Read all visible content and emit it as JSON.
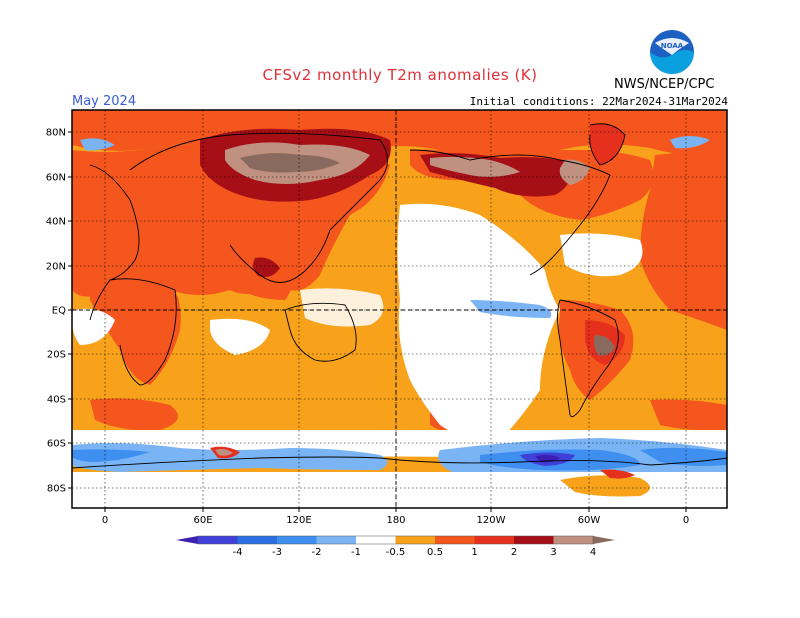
{
  "header": {
    "title": "CFSv2 monthly T2m anomalies (K)",
    "period": "May 2024",
    "initial_conditions": "Initial conditions: 22Mar2024-31Mar2024",
    "agency": "NWS/NCEP/CPC",
    "logo_text": "NOAA"
  },
  "map": {
    "projection": "equirectangular, Pacific-centered",
    "lat_labels": [
      "80N",
      "60N",
      "40N",
      "20N",
      "EQ",
      "20S",
      "40S",
      "60S",
      "80S"
    ],
    "lon_labels": [
      "0",
      "60E",
      "120E",
      "180",
      "120W",
      "60W",
      "0"
    ],
    "colors": {
      "ocean_white": "#ffffff",
      "coastline": "#000000",
      "gridline": "#000000"
    }
  },
  "legend": {
    "labels": [
      "-4",
      "-3",
      "-2",
      "-1",
      "-0.5",
      "0.5",
      "1",
      "2",
      "3",
      "4"
    ],
    "colors": [
      "#3b1fb3",
      "#4040d8",
      "#2a6ee0",
      "#3f8ff0",
      "#7ab4f5",
      "#ffffff",
      "#f7a21a",
      "#f5561d",
      "#e5301e",
      "#a50f15",
      "#c09080",
      "#8a6a5e"
    ]
  }
}
